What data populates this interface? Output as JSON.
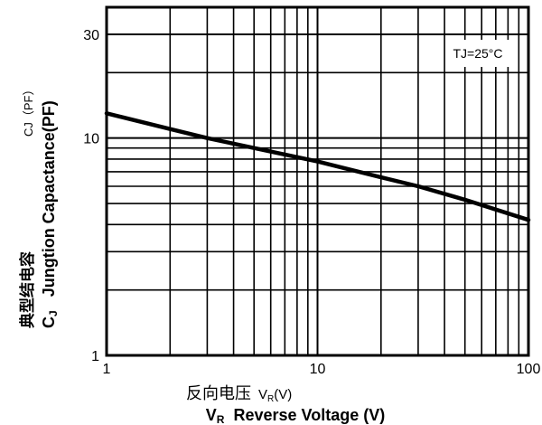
{
  "chart_data": {
    "type": "line",
    "xscale": "log",
    "yscale": "log",
    "xlim": [
      1,
      100
    ],
    "ylim": [
      1,
      40
    ],
    "grid": true,
    "xticks": [
      1,
      10,
      100
    ],
    "yticks": [
      1,
      10,
      30
    ],
    "x_minor_ticks": [
      2,
      3,
      4,
      5,
      6,
      7,
      8,
      9,
      20,
      30,
      40,
      50,
      60,
      70,
      80,
      90
    ],
    "y_minor_ticks": [
      2,
      3,
      4,
      5,
      6,
      7,
      8,
      9,
      20
    ],
    "xlabel_cn": "反向电压",
    "xlabel_unit": "V",
    "xlabel_unit_sub": "R",
    "xlabel_unit_suffix": "(V)",
    "xlabel_bold_main": "V",
    "xlabel_bold_sub": "R",
    "xlabel_bold_text": "Reverse Voltage (V)",
    "ylabel_cn": "典型结电容",
    "ylabel_bold_main": "C",
    "ylabel_bold_sub": "J",
    "ylabel_text": "Jungtion Capactance(PF)",
    "ylabel_small": "CJ（PF）",
    "annotation": "TJ=25°C",
    "series": [
      {
        "x": [
          1,
          2,
          3,
          5,
          10,
          20,
          30,
          50,
          100
        ],
        "y": [
          13.0,
          11.0,
          10.0,
          9.0,
          7.8,
          6.6,
          6.0,
          5.2,
          4.2
        ]
      }
    ]
  }
}
